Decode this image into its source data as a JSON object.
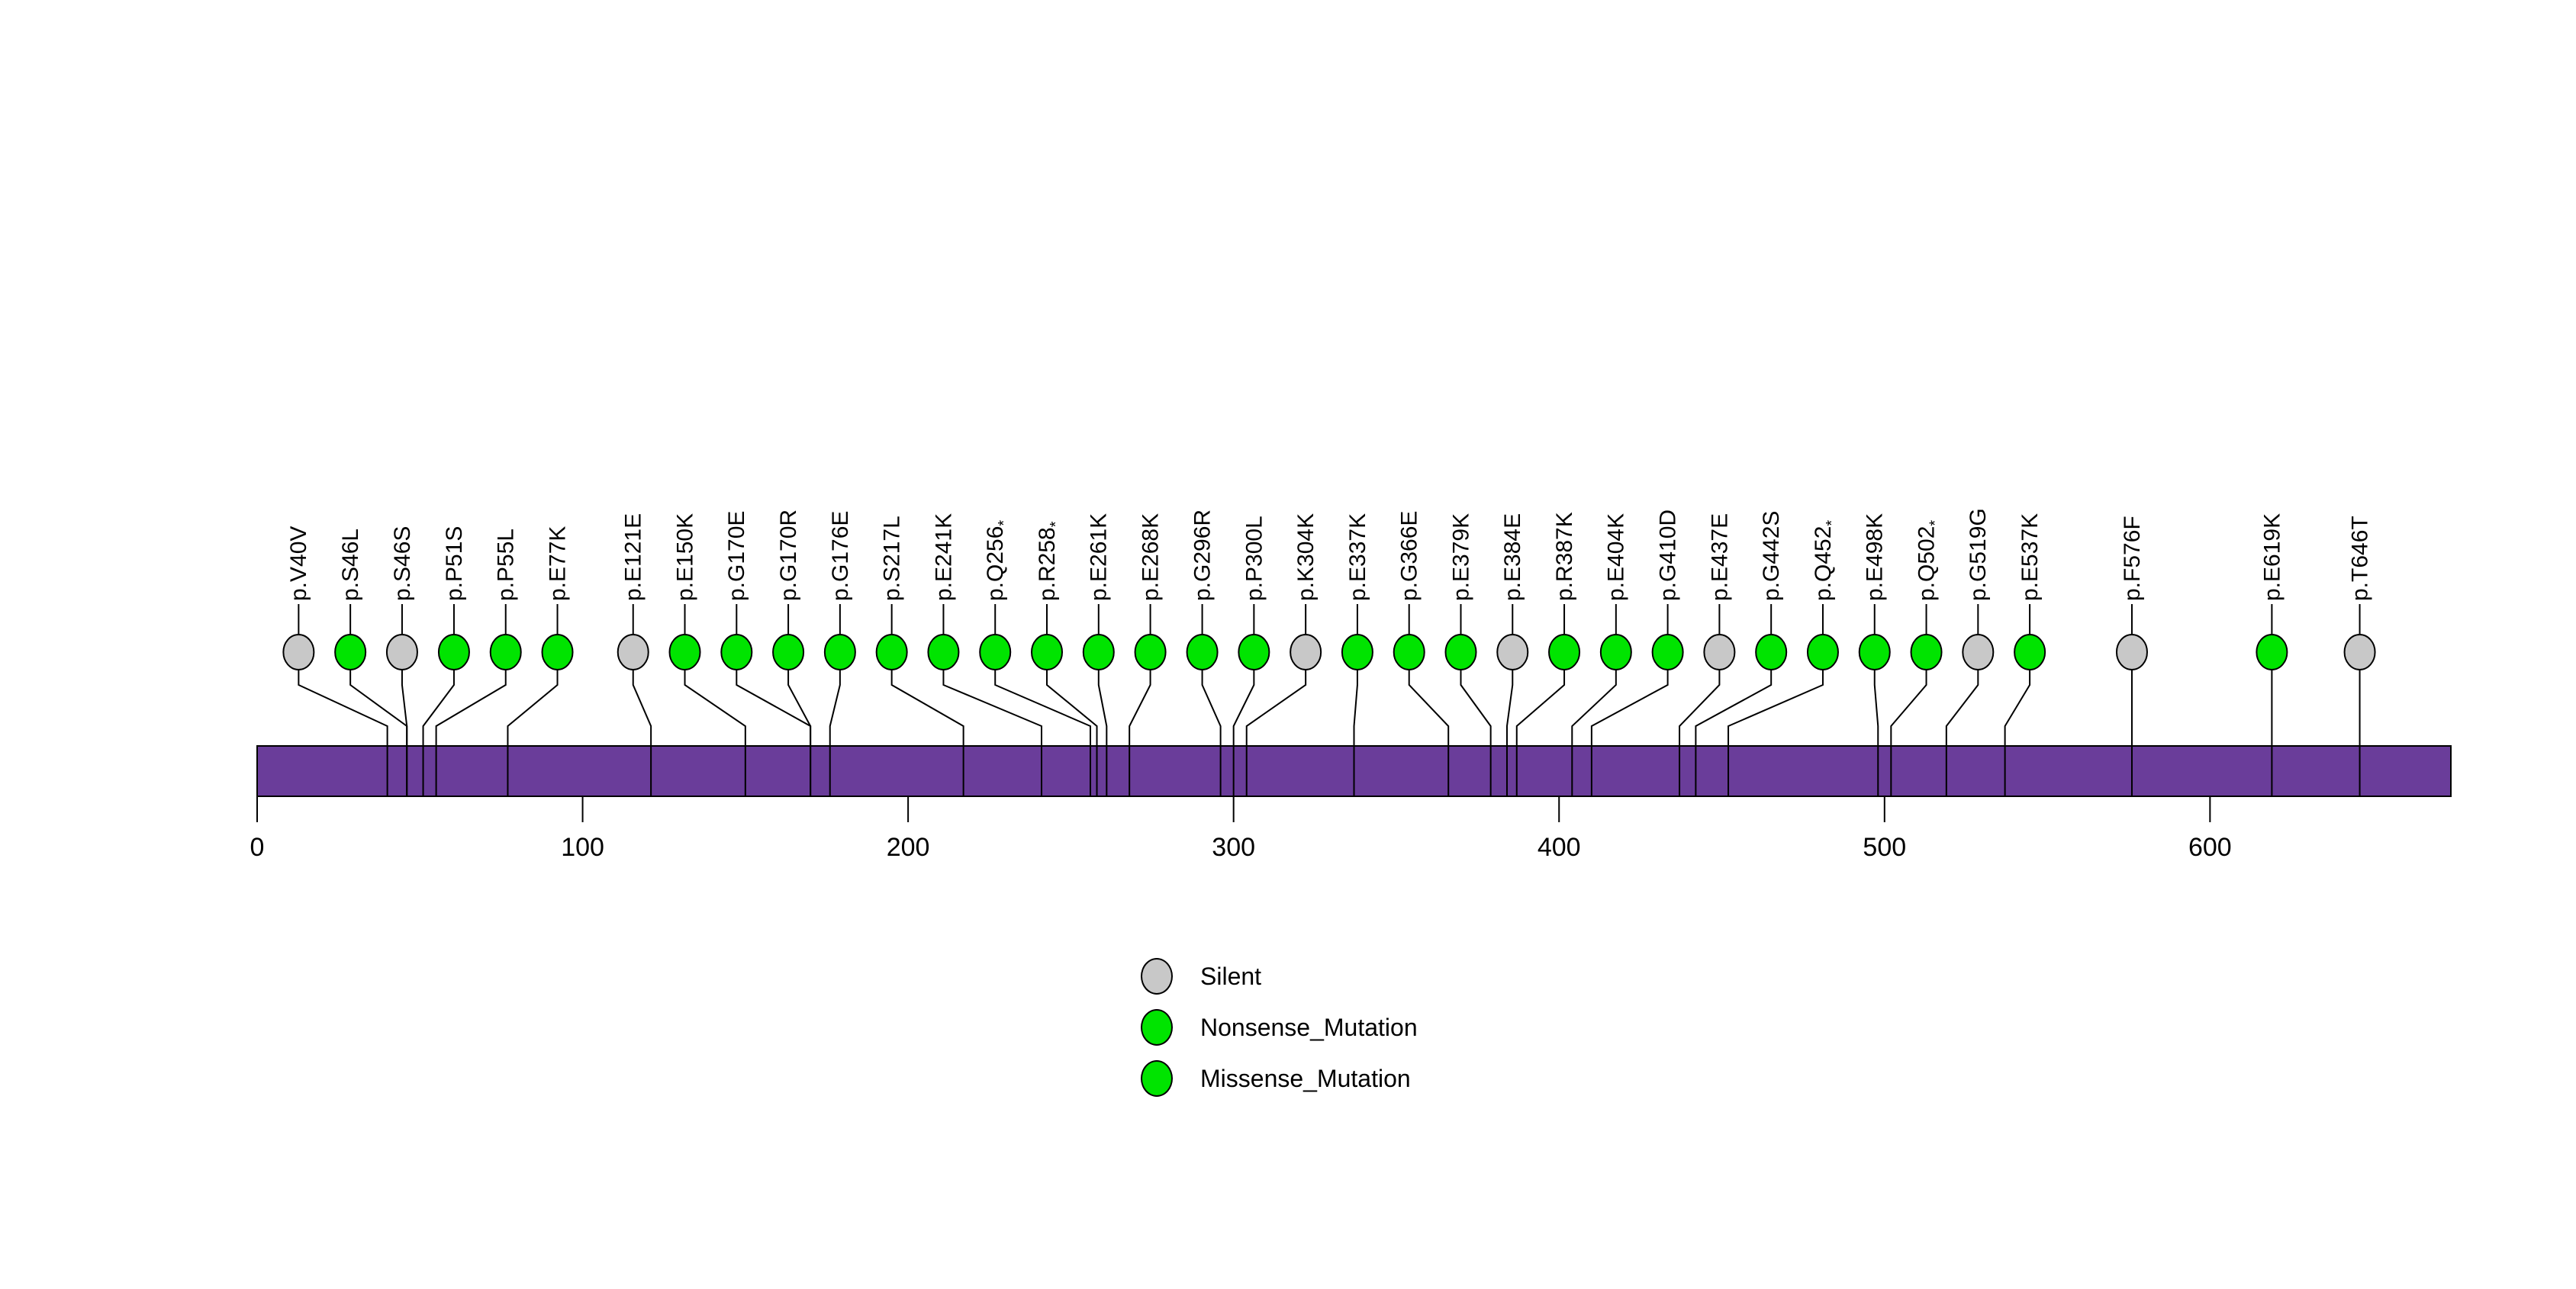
{
  "chart_data": {
    "type": "lollipop",
    "title": "",
    "xlabel": "",
    "ylabel": "",
    "protein_length": 674,
    "x_ticks": [
      0,
      100,
      200,
      300,
      400,
      500,
      600
    ],
    "backbone_color": "#6A3D9A",
    "mutation_type_colors": {
      "Silent": "#C8C8C8",
      "Nonsense_Mutation": "#00E400",
      "Missense_Mutation": "#00E400"
    },
    "mutations": [
      {
        "label": "p.V40V",
        "pos": 40,
        "type": "Silent"
      },
      {
        "label": "p.S46L",
        "pos": 46,
        "type": "Missense_Mutation"
      },
      {
        "label": "p.S46S",
        "pos": 46,
        "type": "Silent"
      },
      {
        "label": "p.P51S",
        "pos": 51,
        "type": "Missense_Mutation"
      },
      {
        "label": "p.P55L",
        "pos": 55,
        "type": "Missense_Mutation"
      },
      {
        "label": "p.E77K",
        "pos": 77,
        "type": "Missense_Mutation"
      },
      {
        "label": "p.E121E",
        "pos": 121,
        "type": "Silent"
      },
      {
        "label": "p.E150K",
        "pos": 150,
        "type": "Missense_Mutation"
      },
      {
        "label": "p.G170E",
        "pos": 170,
        "type": "Missense_Mutation"
      },
      {
        "label": "p.G170R",
        "pos": 170,
        "type": "Missense_Mutation"
      },
      {
        "label": "p.G176E",
        "pos": 176,
        "type": "Missense_Mutation"
      },
      {
        "label": "p.S217L",
        "pos": 217,
        "type": "Missense_Mutation"
      },
      {
        "label": "p.E241K",
        "pos": 241,
        "type": "Missense_Mutation"
      },
      {
        "label": "p.Q256*",
        "pos": 256,
        "type": "Nonsense_Mutation"
      },
      {
        "label": "p.R258*",
        "pos": 258,
        "type": "Nonsense_Mutation"
      },
      {
        "label": "p.E261K",
        "pos": 261,
        "type": "Missense_Mutation"
      },
      {
        "label": "p.E268K",
        "pos": 268,
        "type": "Missense_Mutation"
      },
      {
        "label": "p.G296R",
        "pos": 296,
        "type": "Missense_Mutation"
      },
      {
        "label": "p.P300L",
        "pos": 300,
        "type": "Missense_Mutation"
      },
      {
        "label": "p.K304K",
        "pos": 304,
        "type": "Silent"
      },
      {
        "label": "p.E337K",
        "pos": 337,
        "type": "Missense_Mutation"
      },
      {
        "label": "p.G366E",
        "pos": 366,
        "type": "Missense_Mutation"
      },
      {
        "label": "p.E379K",
        "pos": 379,
        "type": "Missense_Mutation"
      },
      {
        "label": "p.E384E",
        "pos": 384,
        "type": "Silent"
      },
      {
        "label": "p.R387K",
        "pos": 387,
        "type": "Missense_Mutation"
      },
      {
        "label": "p.E404K",
        "pos": 404,
        "type": "Missense_Mutation"
      },
      {
        "label": "p.G410D",
        "pos": 410,
        "type": "Missense_Mutation"
      },
      {
        "label": "p.E437E",
        "pos": 437,
        "type": "Silent"
      },
      {
        "label": "p.G442S",
        "pos": 442,
        "type": "Missense_Mutation"
      },
      {
        "label": "p.Q452*",
        "pos": 452,
        "type": "Nonsense_Mutation"
      },
      {
        "label": "p.E498K",
        "pos": 498,
        "type": "Missense_Mutation"
      },
      {
        "label": "p.Q502*",
        "pos": 502,
        "type": "Nonsense_Mutation"
      },
      {
        "label": "p.G519G",
        "pos": 519,
        "type": "Silent"
      },
      {
        "label": "p.E537K",
        "pos": 537,
        "type": "Missense_Mutation"
      },
      {
        "label": "p.F576F",
        "pos": 576,
        "type": "Silent"
      },
      {
        "label": "p.E619K",
        "pos": 619,
        "type": "Missense_Mutation"
      },
      {
        "label": "p.T646T",
        "pos": 646,
        "type": "Silent"
      }
    ],
    "legend": [
      {
        "label": "Silent",
        "color": "#C8C8C8"
      },
      {
        "label": "Nonsense_Mutation",
        "color": "#00E400"
      },
      {
        "label": "Missense_Mutation",
        "color": "#00E400"
      }
    ],
    "layout_hints": {
      "grid": "off",
      "legend_position": "bottom-center"
    }
  }
}
